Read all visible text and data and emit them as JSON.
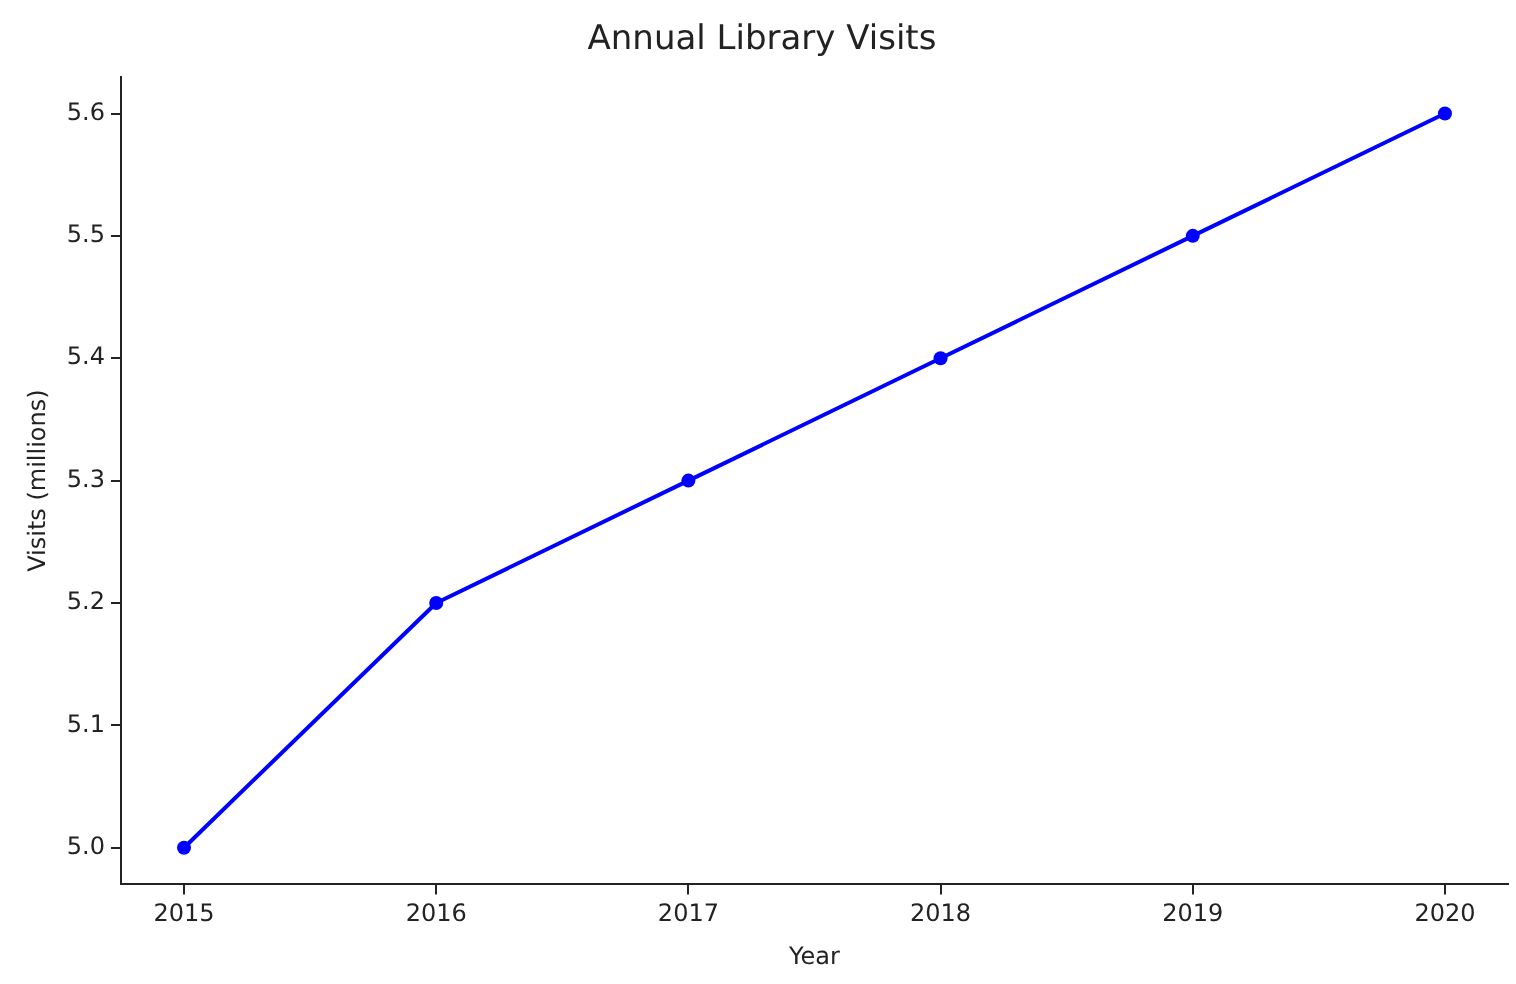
{
  "chart_data": {
    "type": "line",
    "title": "Annual Library Visits",
    "xlabel": "Year",
    "ylabel": "Visits (millions)",
    "x": [
      2015,
      2016,
      2017,
      2018,
      2019,
      2020
    ],
    "series": [
      {
        "color": "#0000ff",
        "values": [
          5.0,
          5.2,
          5.3,
          5.4,
          5.5,
          5.6
        ]
      }
    ],
    "xlim": [
      2014.75,
      2020.25
    ],
    "xticks": [
      2015,
      2016,
      2017,
      2018,
      2019,
      2020
    ],
    "ylim": [
      4.97,
      5.63
    ],
    "yticks": [
      {
        "value": 5.0,
        "label": "5.0"
      },
      5.1,
      5.2,
      5.3,
      5.4,
      5.5,
      5.6
    ],
    "marker": "circle",
    "line_style": "solid",
    "grid": false,
    "legend": false
  }
}
